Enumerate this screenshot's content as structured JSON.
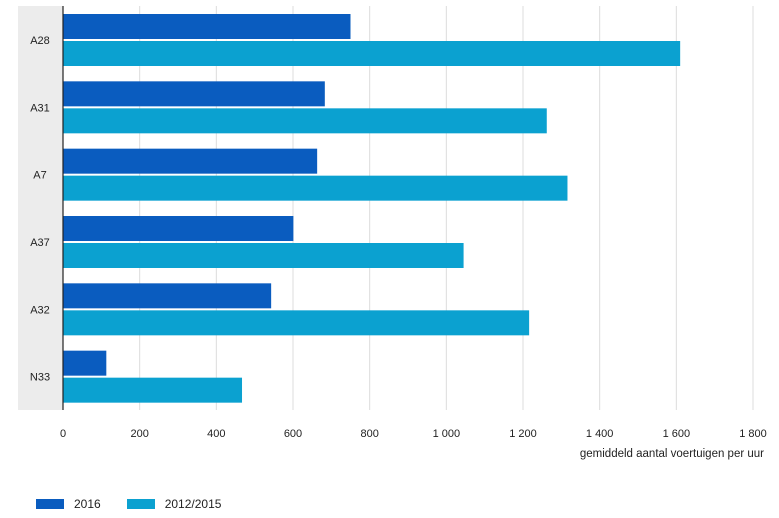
{
  "chart_data": {
    "type": "bar",
    "orientation": "horizontal",
    "categories": [
      "A28",
      "A31",
      "A7",
      "A37",
      "A32",
      "N33"
    ],
    "series": [
      {
        "name": "2016",
        "color": "#0a5cbf",
        "values": [
          750,
          683,
          663,
          601,
          543,
          113
        ]
      },
      {
        "name": "2012/2015",
        "color": "#0ba1d0",
        "values": [
          1610,
          1262,
          1316,
          1045,
          1216,
          467
        ]
      }
    ],
    "x_ticks": [
      "0",
      "200",
      "400",
      "600",
      "800",
      "1 000",
      "1 200",
      "1 400",
      "1 600",
      "1 800"
    ],
    "xlim": [
      0,
      1800
    ],
    "xlabel": "gemiddeld aantal voertuigen per uur",
    "grid": true,
    "legend_position": "bottom-left"
  }
}
